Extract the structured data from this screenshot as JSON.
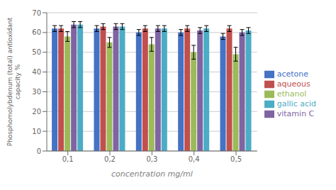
{
  "chart_data": {
    "type": "bar",
    "categories": [
      "0,1",
      "0,2",
      "0,3",
      "0,4",
      "0,5"
    ],
    "series": [
      {
        "name": "acetone",
        "color": "#4472C4",
        "values": [
          62,
          62,
          60,
          60,
          58
        ],
        "errors": [
          1.5,
          1.5,
          1.5,
          1.5,
          1.5
        ]
      },
      {
        "name": "aqueous",
        "color": "#C0504D",
        "values": [
          62,
          63,
          62,
          62,
          62
        ],
        "errors": [
          1.5,
          1.5,
          1.5,
          1.5,
          1.5
        ]
      },
      {
        "name": "ethanol",
        "color": "#9BBB59",
        "values": [
          58,
          55,
          54,
          50,
          49
        ],
        "errors": [
          2.5,
          2.5,
          3.5,
          3.5,
          3.5
        ]
      },
      {
        "name": "vitamin C",
        "color": "#8064A2",
        "values": [
          64,
          63,
          62,
          61,
          60
        ],
        "errors": [
          1.5,
          1.5,
          1.5,
          1.5,
          1.5
        ]
      },
      {
        "name": "gallic acid",
        "color": "#4BACC6",
        "values": [
          64,
          63,
          62,
          62,
          61
        ],
        "errors": [
          1.5,
          1.5,
          1.5,
          1.5,
          1.5
        ]
      }
    ],
    "xlabel": "concentration mg/ml",
    "ylabel": "Phosphomolybdenum (total) antioxidant\ncapacity %",
    "ylim": [
      0,
      70
    ],
    "yticks": [
      0,
      10,
      20,
      30,
      40,
      50,
      60,
      70
    ],
    "grid": true,
    "legend": "right"
  }
}
